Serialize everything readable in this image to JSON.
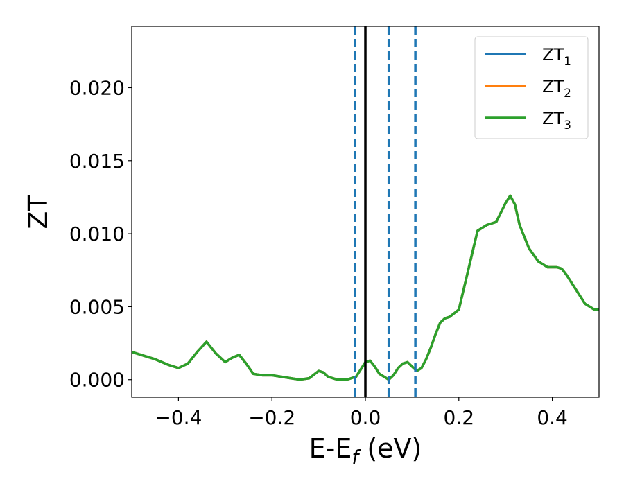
{
  "chart_data": {
    "type": "line",
    "title": "",
    "xlabel": {
      "main": "E-E",
      "sub": "f",
      "rest": " (eV)"
    },
    "ylabel": "ZT",
    "xlim": [
      -0.5,
      0.5
    ],
    "ylim": [
      -0.0012,
      0.0242
    ],
    "xticks": [
      {
        "value": -0.4,
        "label": "−0.4"
      },
      {
        "value": -0.2,
        "label": "−0.2"
      },
      {
        "value": 0.0,
        "label": "0.0"
      },
      {
        "value": 0.2,
        "label": "0.2"
      },
      {
        "value": 0.4,
        "label": "0.4"
      }
    ],
    "yticks": [
      {
        "value": 0.0,
        "label": "0.000"
      },
      {
        "value": 0.005,
        "label": "0.005"
      },
      {
        "value": 0.01,
        "label": "0.010"
      },
      {
        "value": 0.015,
        "label": "0.015"
      },
      {
        "value": 0.02,
        "label": "0.020"
      }
    ],
    "legend": {
      "placement": "top-right",
      "entries": [
        {
          "base": "ZT",
          "sub": "1",
          "color": "#1f77b4"
        },
        {
          "base": "ZT",
          "sub": "2",
          "color": "#ff7f0e"
        },
        {
          "base": "ZT",
          "sub": "3",
          "color": "#2ca02c"
        }
      ]
    },
    "vertical_lines": [
      {
        "x": -0.022,
        "style": "dashed",
        "color": "#1f77b4"
      },
      {
        "x": 0.0,
        "style": "solid",
        "color": "#000000"
      },
      {
        "x": 0.05,
        "style": "dashed",
        "color": "#1f77b4"
      },
      {
        "x": 0.107,
        "style": "dashed",
        "color": "#1f77b4"
      }
    ],
    "x": [
      -0.5,
      -0.48,
      -0.45,
      -0.42,
      -0.4,
      -0.38,
      -0.36,
      -0.34,
      -0.32,
      -0.3,
      -0.285,
      -0.27,
      -0.255,
      -0.24,
      -0.22,
      -0.2,
      -0.18,
      -0.16,
      -0.14,
      -0.12,
      -0.1,
      -0.09,
      -0.08,
      -0.06,
      -0.04,
      -0.02,
      -0.01,
      0.0,
      0.01,
      0.02,
      0.03,
      0.04,
      0.05,
      0.06,
      0.07,
      0.08,
      0.09,
      0.1,
      0.11,
      0.12,
      0.13,
      0.14,
      0.15,
      0.16,
      0.17,
      0.18,
      0.2,
      0.22,
      0.24,
      0.26,
      0.28,
      0.3,
      0.31,
      0.32,
      0.33,
      0.35,
      0.37,
      0.39,
      0.41,
      0.42,
      0.43,
      0.45,
      0.47,
      0.49,
      0.5
    ],
    "series": [
      {
        "name": "ZT1",
        "color": "#1f77b4",
        "values": [
          0.0019,
          0.0017,
          0.0014,
          0.001,
          0.0008,
          0.0011,
          0.0019,
          0.0026,
          0.0018,
          0.0012,
          0.0015,
          0.0017,
          0.0011,
          0.0004,
          0.0003,
          0.0003,
          0.0002,
          0.0001,
          0.0,
          0.0001,
          0.0006,
          0.0005,
          0.0002,
          0.0,
          0.0,
          0.0002,
          0.0007,
          0.0012,
          0.0013,
          0.0009,
          0.0004,
          0.0002,
          0.0,
          0.0003,
          0.0008,
          0.0011,
          0.0012,
          0.0009,
          0.0006,
          0.0008,
          0.0014,
          0.0022,
          0.0031,
          0.0039,
          0.0042,
          0.0043,
          0.0048,
          0.0075,
          0.0102,
          0.0106,
          0.0108,
          0.0121,
          0.0126,
          0.012,
          0.0106,
          0.009,
          0.0081,
          0.0077,
          0.0077,
          0.0076,
          0.0072,
          0.0062,
          0.0052,
          0.0048,
          0.0048
        ]
      },
      {
        "name": "ZT2",
        "color": "#ff7f0e",
        "values": [
          0.0019,
          0.0017,
          0.0014,
          0.001,
          0.0008,
          0.0011,
          0.0019,
          0.0026,
          0.0018,
          0.0012,
          0.0015,
          0.0017,
          0.0011,
          0.0004,
          0.0003,
          0.0003,
          0.0002,
          0.0001,
          0.0,
          0.0001,
          0.0006,
          0.0005,
          0.0002,
          0.0,
          0.0,
          0.0002,
          0.0007,
          0.0012,
          0.0013,
          0.0009,
          0.0004,
          0.0002,
          0.0,
          0.0003,
          0.0008,
          0.0011,
          0.0012,
          0.0009,
          0.0006,
          0.0008,
          0.0014,
          0.0022,
          0.0031,
          0.0039,
          0.0042,
          0.0043,
          0.0048,
          0.0075,
          0.0102,
          0.0106,
          0.0108,
          0.0121,
          0.0126,
          0.012,
          0.0106,
          0.009,
          0.0081,
          0.0077,
          0.0077,
          0.0076,
          0.0072,
          0.0062,
          0.0052,
          0.0048,
          0.0048
        ]
      },
      {
        "name": "ZT3",
        "color": "#2ca02c",
        "values": [
          0.0019,
          0.0017,
          0.0014,
          0.001,
          0.0008,
          0.0011,
          0.0019,
          0.0026,
          0.0018,
          0.0012,
          0.0015,
          0.0017,
          0.0011,
          0.0004,
          0.0003,
          0.0003,
          0.0002,
          0.0001,
          0.0,
          0.0001,
          0.0006,
          0.0005,
          0.0002,
          0.0,
          0.0,
          0.0002,
          0.0007,
          0.0012,
          0.0013,
          0.0009,
          0.0004,
          0.0002,
          0.0,
          0.0003,
          0.0008,
          0.0011,
          0.0012,
          0.0009,
          0.0006,
          0.0008,
          0.0014,
          0.0022,
          0.0031,
          0.0039,
          0.0042,
          0.0043,
          0.0048,
          0.0075,
          0.0102,
          0.0106,
          0.0108,
          0.0121,
          0.0126,
          0.012,
          0.0106,
          0.009,
          0.0081,
          0.0077,
          0.0077,
          0.0076,
          0.0072,
          0.0062,
          0.0052,
          0.0048,
          0.0048
        ]
      }
    ]
  }
}
